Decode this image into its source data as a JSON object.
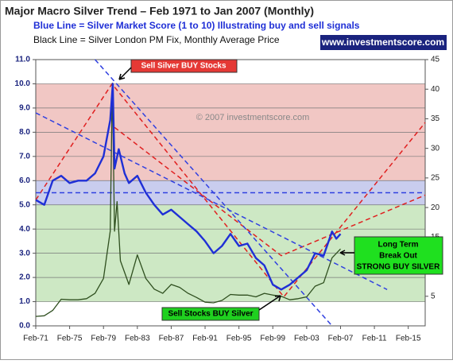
{
  "chart_data": {
    "type": "line",
    "title": "Major Macro Silver Trend – Feb 1971 to Jan 2007 (Monthly)",
    "subtitle": "Blue Line = Silver Market Score (1 to 10) Illustrating buy and sell signals",
    "subtitle2": "Black Line = Silver London PM Fix, Monthly Average Price",
    "badge": "www.investmentscore.com",
    "xlim": [
      1971,
      2017
    ],
    "xticks": [
      {
        "value": 1971,
        "label": "Feb-71"
      },
      {
        "value": 1975,
        "label": "Feb-75"
      },
      {
        "value": 1979,
        "label": "Feb-79"
      },
      {
        "value": 1983,
        "label": "Feb-83"
      },
      {
        "value": 1987,
        "label": "Feb-87"
      },
      {
        "value": 1991,
        "label": "Feb-91"
      },
      {
        "value": 1995,
        "label": "Feb-95"
      },
      {
        "value": 1999,
        "label": "Feb-99"
      },
      {
        "value": 2003,
        "label": "Feb-03"
      },
      {
        "value": 2007,
        "label": "Feb-07"
      },
      {
        "value": 2011,
        "label": "Feb-11"
      },
      {
        "value": 2015,
        "label": "Feb-15"
      }
    ],
    "ylim": [
      0,
      11
    ],
    "yticks": [
      {
        "value": 0,
        "label": "0.0"
      },
      {
        "value": 1,
        "label": "1.0"
      },
      {
        "value": 2,
        "label": "2.0"
      },
      {
        "value": 3,
        "label": "3.0"
      },
      {
        "value": 4,
        "label": "4.0"
      },
      {
        "value": 5,
        "label": "5.0"
      },
      {
        "value": 6,
        "label": "6.0"
      },
      {
        "value": 7,
        "label": "7.0"
      },
      {
        "value": 8,
        "label": "8.0"
      },
      {
        "value": 9,
        "label": "9.0"
      },
      {
        "value": 10,
        "label": "10.0"
      },
      {
        "value": 11,
        "label": "11.0"
      }
    ],
    "y2lim": [
      0,
      45
    ],
    "y2ticks": [
      5,
      10,
      15,
      20,
      25,
      30,
      35,
      40,
      45
    ],
    "grid": true,
    "bands": [
      {
        "from": 1,
        "to": 5,
        "color": "#cde8c4"
      },
      {
        "from": 5,
        "to": 6,
        "color": "#c9cdee"
      },
      {
        "from": 6,
        "to": 10,
        "color": "#f1c7c4"
      }
    ],
    "series": [
      {
        "color": "#1f2fd6",
        "x": [
          1971,
          1972,
          1972.5,
          1973,
          1974,
          1975,
          1976,
          1977,
          1978,
          1979,
          1979.8,
          1980.1,
          1980.3,
          1980.8,
          1981.5,
          1982,
          1983,
          1984,
          1985,
          1986,
          1987,
          1988,
          1989,
          1990,
          1991,
          1992,
          1993,
          1994,
          1995,
          1996,
          1997,
          1998,
          1999,
          2000,
          2001,
          2002,
          2003,
          2004,
          2005,
          2006,
          2006.5,
          2007
        ],
        "values": [
          5.2,
          5.0,
          5.5,
          6.0,
          6.2,
          5.9,
          6.0,
          6.0,
          6.3,
          7.0,
          8.5,
          10.0,
          6.5,
          7.3,
          6.3,
          5.9,
          6.2,
          5.5,
          5.0,
          4.6,
          4.8,
          4.5,
          4.2,
          3.9,
          3.5,
          3.0,
          3.3,
          3.8,
          3.3,
          3.4,
          2.8,
          2.5,
          1.7,
          1.5,
          1.7,
          2.0,
          2.3,
          3.0,
          2.9,
          3.9,
          3.6,
          3.8
        ]
      },
      {
        "color": "#2f4f1f",
        "axis": "y2",
        "x": [
          1971,
          1972,
          1973,
          1974,
          1975,
          1976,
          1977,
          1978,
          1979,
          1979.8,
          1980.05,
          1980.3,
          1980.6,
          1981,
          1982,
          1983,
          1984,
          1985,
          1986,
          1987,
          1988,
          1989,
          1990,
          1991,
          1992,
          1993,
          1994,
          1995,
          1996,
          1997,
          1998,
          1999,
          2000,
          2001,
          2002,
          2003,
          2004,
          2005,
          2006,
          2007
        ],
        "values": [
          1.6,
          1.7,
          2.6,
          4.5,
          4.4,
          4.4,
          4.6,
          5.5,
          8,
          16,
          41,
          16,
          21,
          11,
          7,
          12,
          8,
          6.2,
          5.5,
          7,
          6.5,
          5.5,
          4.8,
          4.0,
          3.9,
          4.3,
          5.3,
          5.2,
          5.2,
          4.9,
          5.5,
          5.2,
          5.0,
          4.4,
          4.6,
          4.9,
          6.7,
          7.3,
          11.5,
          13
        ]
      }
    ],
    "trend_lines": [
      {
        "color": "#e02020",
        "x": [
          1971,
          1980,
          2000.3,
          2017
        ],
        "values": [
          5.2,
          10,
          1.2,
          8.4
        ]
      },
      {
        "color": "#e02020",
        "x": [
          1980.3,
          2000,
          2017
        ],
        "values": [
          8.2,
          2.9,
          5.4
        ]
      },
      {
        "color": "#3040e0",
        "x": [
          1978,
          2006
        ],
        "values": [
          11,
          0
        ]
      },
      {
        "color": "#3040e0",
        "x": [
          1971,
          2012.5
        ],
        "values": [
          8.8,
          1.5
        ]
      },
      {
        "color": "#3040e0",
        "x": [
          1971,
          2017
        ],
        "values": [
          5.5,
          5.5
        ]
      }
    ],
    "annotations": {
      "sell": "Sell Silver BUY Stocks",
      "copyright": "© 2007 investmentscore.com",
      "buy": "Sell Stocks BUY Silver",
      "breakout": [
        "Long Term",
        "Break Out",
        "STRONG BUY SILVER"
      ]
    }
  }
}
